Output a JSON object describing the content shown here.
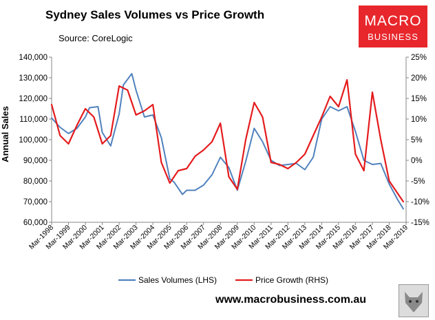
{
  "title": "Sydney Sales Volumes vs Price Growth",
  "subtitle": "Source: CoreLogic",
  "logo": {
    "line1": "MACRO",
    "line2": "BUSINESS",
    "color": "#e8272c"
  },
  "footer": "www.macrobusiness.com.au",
  "chart_data": {
    "type": "line",
    "ylabel": "Annual Sales",
    "left_axis": {
      "min": 60000,
      "max": 140000,
      "step": 10000,
      "tick_labels": [
        "60,000",
        "70,000",
        "80,000",
        "90,000",
        "100,000",
        "110,000",
        "120,000",
        "130,000",
        "140,000"
      ]
    },
    "right_axis": {
      "min": -15,
      "max": 25,
      "step": 5,
      "tick_labels": [
        "-15%",
        "-10%",
        "-5%",
        "0%",
        "5%",
        "10%",
        "15%",
        "20%",
        "25%"
      ]
    },
    "x_tick_labels": [
      "Mar-1998",
      "Mar-1999",
      "Mar-2000",
      "Mar-2001",
      "Mar-2002",
      "Mar-2003",
      "Mar-2004",
      "Mar-2005",
      "Mar-2006",
      "Mar-2007",
      "Mar-2008",
      "Mar-2009",
      "Mar-2010",
      "Mar-2011",
      "Mar-2012",
      "Mar-2013",
      "Mar-2014",
      "Mar-2015",
      "Mar-2016",
      "Mar-2017",
      "Mar-2018",
      "Mar-2019"
    ],
    "legend_position": "bottom",
    "grid": false,
    "series": [
      {
        "name": "Sales Volumes (LHS)",
        "axis": "left",
        "color": "#4f81bd",
        "x": [
          "Mar-1998",
          "Sep-1998",
          "Mar-1999",
          "Sep-1999",
          "Mar-2000",
          "Jun-2000",
          "Dec-2000",
          "Mar-2001",
          "Sep-2001",
          "Mar-2002",
          "Jun-2002",
          "Dec-2002",
          "Mar-2003",
          "Sep-2003",
          "Mar-2004",
          "Sep-2004",
          "Mar-2005",
          "Jun-2005",
          "Dec-2005",
          "Mar-2006",
          "Sep-2006",
          "Mar-2007",
          "Sep-2007",
          "Mar-2008",
          "Sep-2008",
          "Mar-2009",
          "Sep-2009",
          "Mar-2010",
          "Sep-2010",
          "Mar-2011",
          "Sep-2011",
          "Mar-2012",
          "Sep-2012",
          "Mar-2013",
          "Sep-2013",
          "Mar-2014",
          "Sep-2014",
          "Mar-2015",
          "Sep-2015",
          "Mar-2016",
          "Sep-2016",
          "Mar-2017",
          "Sep-2017",
          "Mar-2018",
          "Sep-2018",
          "Jan-2019"
        ],
        "values": [
          110500,
          106000,
          103000,
          105500,
          111000,
          115500,
          116000,
          103500,
          97000,
          112500,
          126500,
          132000,
          124000,
          111000,
          112000,
          101000,
          81000,
          79500,
          73500,
          75500,
          75500,
          78000,
          83000,
          91500,
          86500,
          75500,
          89500,
          105500,
          99000,
          90000,
          87500,
          88000,
          88500,
          85500,
          91500,
          110000,
          116000,
          114000,
          116000,
          104000,
          90000,
          88000,
          88500,
          78500,
          71000,
          66500
        ]
      },
      {
        "name": "Price Growth (RHS)",
        "axis": "right",
        "color": "#e41a1c",
        "x": [
          "Mar-1998",
          "Sep-1998",
          "Mar-1999",
          "Sep-1999",
          "Mar-2000",
          "Sep-2000",
          "Mar-2001",
          "Sep-2001",
          "Mar-2002",
          "Sep-2002",
          "Mar-2003",
          "Sep-2003",
          "Mar-2004",
          "Sep-2004",
          "Mar-2005",
          "Sep-2005",
          "Mar-2006",
          "Sep-2006",
          "Mar-2007",
          "Sep-2007",
          "Mar-2008",
          "Sep-2008",
          "Mar-2009",
          "Sep-2009",
          "Mar-2010",
          "Sep-2010",
          "Mar-2011",
          "Sep-2011",
          "Mar-2012",
          "Sep-2012",
          "Mar-2013",
          "Sep-2013",
          "Mar-2014",
          "Sep-2014",
          "Mar-2015",
          "Sep-2015",
          "Mar-2016",
          "Sep-2016",
          "Mar-2017",
          "Sep-2017",
          "Mar-2018",
          "Sep-2018",
          "Jan-2019"
        ],
        "values": [
          13.5,
          6.0,
          4.0,
          8.5,
          12.5,
          10.5,
          4.0,
          6.0,
          18.0,
          17.0,
          11.0,
          12.0,
          13.5,
          -0.5,
          -5.5,
          -2.5,
          -2.0,
          1.0,
          2.5,
          4.5,
          9.0,
          -4.0,
          -7.0,
          5.0,
          14.0,
          10.5,
          -0.5,
          -1.0,
          -2.0,
          -0.5,
          1.5,
          6.0,
          10.5,
          15.5,
          13.0,
          19.5,
          1.5,
          -2.5,
          16.5,
          5.0,
          -5.0,
          -8.0,
          -10.0
        ]
      }
    ]
  }
}
